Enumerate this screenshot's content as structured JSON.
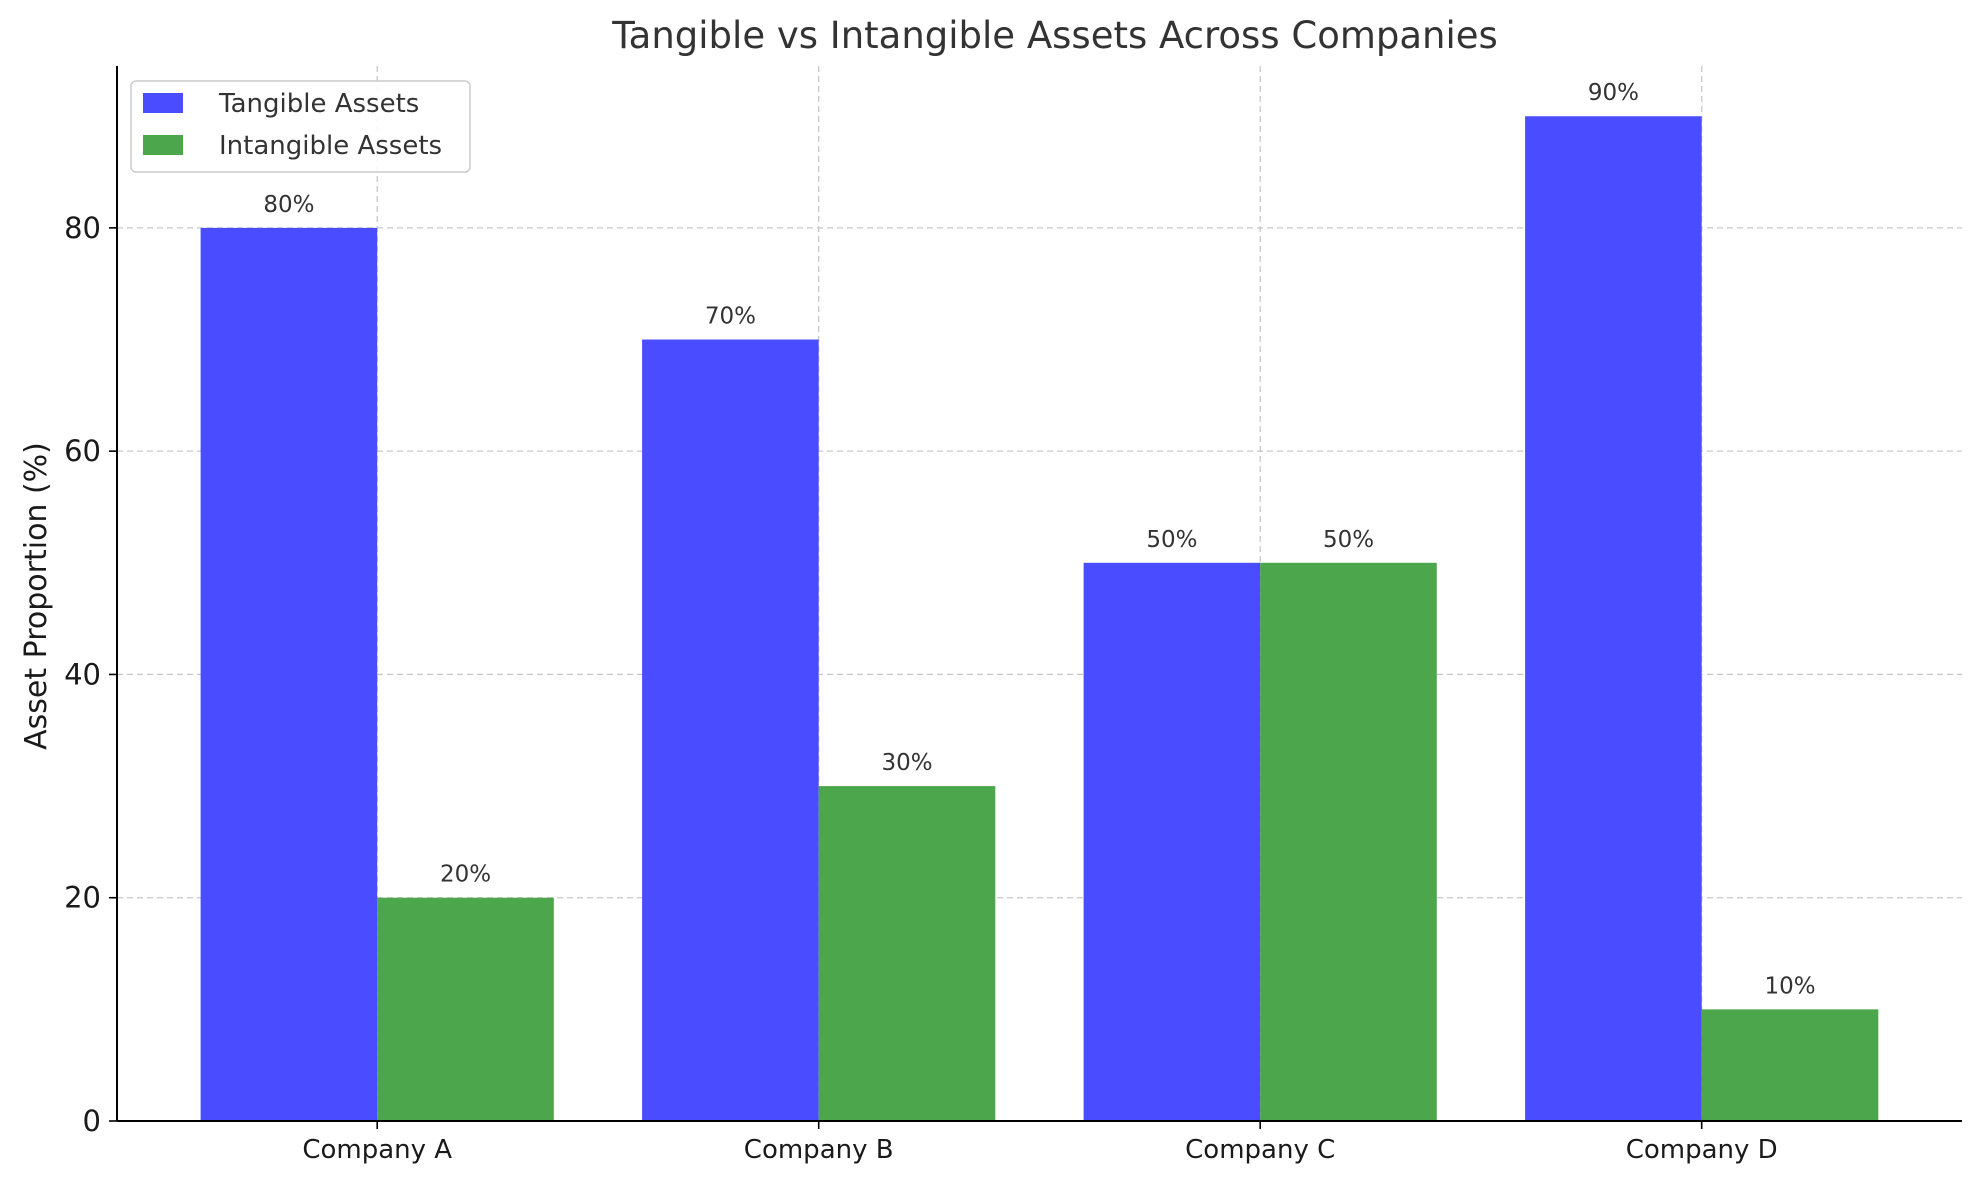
{
  "chart_data": {
    "type": "bar",
    "title": "Tangible vs Intangible Assets Across Companies",
    "xlabel": "",
    "ylabel": "Asset Proportion (%)",
    "categories": [
      "Company A",
      "Company B",
      "Company C",
      "Company D"
    ],
    "series": [
      {
        "name": "Tangible Assets",
        "values": [
          80,
          70,
          50,
          90
        ],
        "color": "#4a4dff"
      },
      {
        "name": "Intangible Assets",
        "values": [
          20,
          30,
          50,
          10
        ],
        "color": "#4ca64c"
      }
    ],
    "value_labels": [
      [
        "80%",
        "70%",
        "50%",
        "90%"
      ],
      [
        "20%",
        "30%",
        "50%",
        "10%"
      ]
    ],
    "ylim": [
      0,
      94.5
    ],
    "yticks": [
      0,
      20,
      40,
      60,
      80
    ],
    "grid": true,
    "legend_position": "top-left"
  }
}
